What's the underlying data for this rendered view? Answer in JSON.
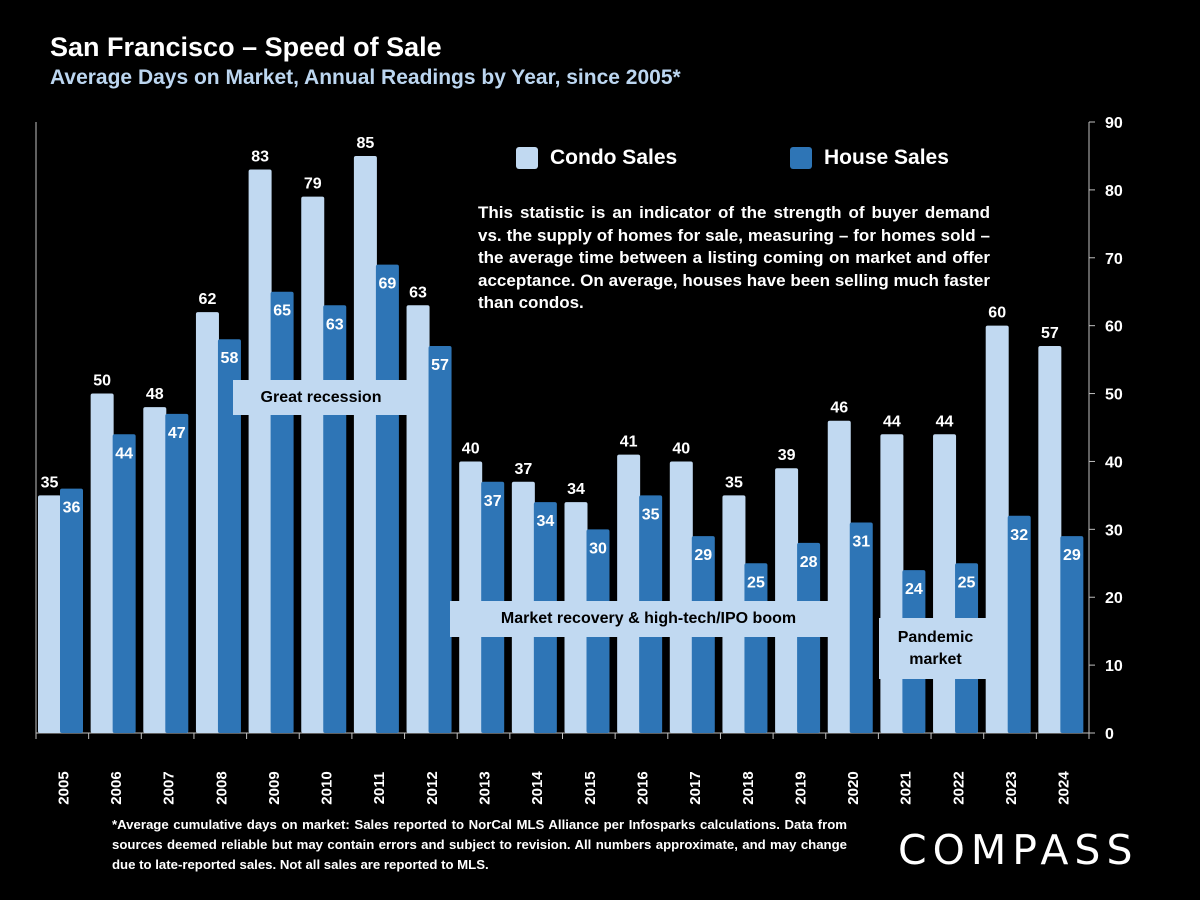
{
  "header": {
    "title": "San Francisco – Speed of Sale",
    "subtitle": "Average Days on Market, Annual Readings by Year, since 2005*"
  },
  "description": "This statistic is an indicator of the strength of buyer demand vs. the supply of homes for sale, measuring – for homes sold – the average time between a listing coming on market and offer acceptance. On average, houses have been selling much faster than condos.",
  "annotations": {
    "recession": "Great recession",
    "recovery": "Market recovery &  high-tech/IPO boom",
    "pandemic_line1": "Pandemic",
    "pandemic_line2": "market"
  },
  "footnote": "*Average cumulative days on market: Sales reported to NorCal MLS Alliance per Infosparks calculations. Data from sources deemed reliable but may contain errors and subject to revision. All numbers approximate, and may change due to late-reported sales. Not all sales are reported to MLS.",
  "logo": "COMPASS",
  "colors": {
    "condo": "#c1d9f1",
    "house": "#2e75b6",
    "background": "#000000",
    "annotation_bg": "#c1d9f1"
  },
  "chart_data": {
    "type": "bar",
    "categories": [
      "2005",
      "2006",
      "2007",
      "2008",
      "2009",
      "2010",
      "2011",
      "2012",
      "2013",
      "2014",
      "2015",
      "2016",
      "2017",
      "2018",
      "2019",
      "2020",
      "2021",
      "2022",
      "2023",
      "2024"
    ],
    "series": [
      {
        "name": "Condo Sales",
        "values": [
          35,
          50,
          48,
          62,
          83,
          79,
          85,
          63,
          40,
          37,
          34,
          41,
          40,
          35,
          39,
          46,
          44,
          44,
          60,
          57
        ]
      },
      {
        "name": "House Sales",
        "values": [
          36,
          44,
          47,
          58,
          65,
          63,
          69,
          57,
          37,
          34,
          30,
          35,
          29,
          25,
          28,
          31,
          24,
          25,
          32,
          29
        ]
      }
    ],
    "ylim": [
      0,
      90
    ],
    "yticks": [
      0,
      10,
      20,
      30,
      40,
      50,
      60,
      70,
      80,
      90
    ],
    "y_axis_side": "right",
    "legend_position": "top",
    "grid": false
  }
}
